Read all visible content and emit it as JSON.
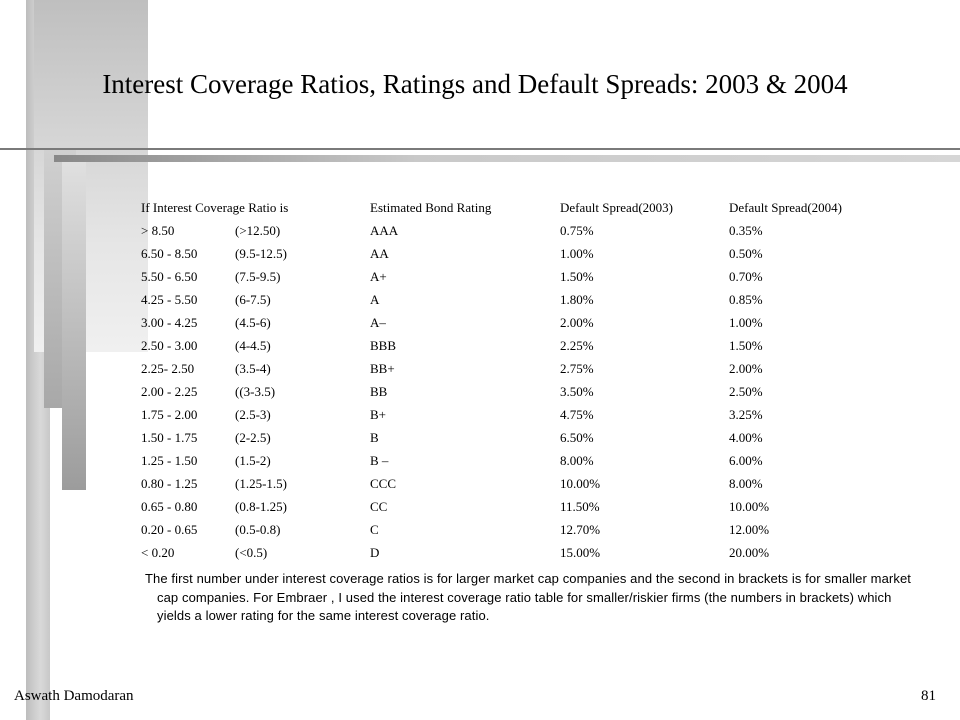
{
  "slide": {
    "title": "Interest Coverage Ratios, Ratings and Default Spreads: 2003 & 2004",
    "header": {
      "coverage": "If Interest Coverage Ratio is",
      "rating": "Estimated Bond Rating",
      "spread2003": "Default Spread(2003)",
      "spread2004": "Default Spread(2004)"
    },
    "rows": [
      {
        "large": "> 8.50",
        "small": "(>12.50)",
        "rating": "AAA",
        "s2003": "0.75%",
        "s2004": "0.35%"
      },
      {
        "large": "6.50 - 8.50",
        "small": "(9.5-12.5)",
        "rating": "AA",
        "s2003": "1.00%",
        "s2004": "0.50%"
      },
      {
        "large": "5.50 - 6.50",
        "small": "(7.5-9.5)",
        "rating": "A+",
        "s2003": "1.50%",
        "s2004": "0.70%"
      },
      {
        "large": "4.25 - 5.50",
        "small": "(6-7.5)",
        "rating": "A",
        "s2003": "1.80%",
        "s2004": "0.85%"
      },
      {
        "large": "3.00 - 4.25",
        "small": "(4.5-6)",
        "rating": "A–",
        "s2003": "2.00%",
        "s2004": "1.00%"
      },
      {
        "large": "2.50 - 3.00",
        "small": "(4-4.5)",
        "rating": "BBB",
        "s2003": "2.25%",
        "s2004": "1.50%"
      },
      {
        "large": "2.25- 2.50",
        "small": "(3.5-4)",
        "rating": "BB+",
        "s2003": "2.75%",
        "s2004": "2.00%"
      },
      {
        "large": "2.00 - 2.25",
        "small": "((3-3.5)",
        "rating": "BB",
        "s2003": "3.50%",
        "s2004": "2.50%"
      },
      {
        "large": "1.75 - 2.00",
        "small": "(2.5-3)",
        "rating": "B+",
        "s2003": "4.75%",
        "s2004": "3.25%"
      },
      {
        "large": "1.50 - 1.75",
        "small": "(2-2.5)",
        "rating": "B",
        "s2003": "6.50%",
        "s2004": "4.00%"
      },
      {
        "large": "1.25 - 1.50",
        "small": "(1.5-2)",
        "rating": "B –",
        "s2003": "8.00%",
        "s2004": "6.00%"
      },
      {
        "large": "0.80 - 1.25",
        "small": "(1.25-1.5)",
        "rating": "CCC",
        "s2003": "10.00%",
        "s2004": "8.00%"
      },
      {
        "large": "0.65 - 0.80",
        "small": "(0.8-1.25)",
        "rating": "CC",
        "s2003": "11.50%",
        "s2004": "10.00%"
      },
      {
        "large": "0.20 - 0.65",
        "small": "(0.5-0.8)",
        "rating": "C",
        "s2003": "12.70%",
        "s2004": "12.00%"
      },
      {
        "large": "< 0.20",
        "small": "(<0.5)",
        "rating": "D",
        "s2003": "15.00%",
        "s2004": "20.00%"
      }
    ],
    "note": "The first number under interest coverage ratios is for larger market cap companies and the second in brackets is for smaller market cap companies. For Embraer , I used the interest coverage ratio table for smaller/riskier firms (the numbers in brackets) which yields a lower rating for the same interest coverage ratio.",
    "footer": {
      "author": "Aswath Damodaran",
      "page": "81"
    }
  }
}
